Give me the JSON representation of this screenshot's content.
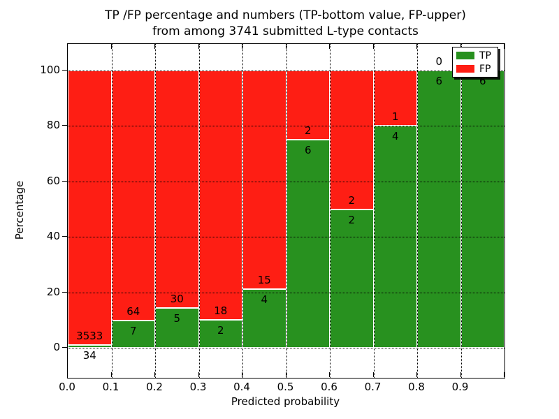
{
  "title": {
    "line1": "TP /FP percentage and numbers (TP-bottom value, FP-upper)",
    "line2": "from among 3741 submitted L-type contacts"
  },
  "axes": {
    "xlabel": "Predicted probability",
    "ylabel": "Percentage",
    "x_tick_labels": [
      "0.0",
      "0.1",
      "0.2",
      "0.3",
      "0.4",
      "0.5",
      "0.6",
      "0.7",
      "0.8",
      "0.9"
    ],
    "y_tick_labels": [
      "0",
      "20",
      "40",
      "60",
      "80",
      "100"
    ],
    "y_tick_values": [
      0,
      20,
      40,
      60,
      80,
      100
    ]
  },
  "legend": {
    "items": [
      {
        "label": "TP",
        "color": "#28911f"
      },
      {
        "label": "FP",
        "color": "#fe1e14"
      }
    ]
  },
  "colors": {
    "tp_green": "#28911f",
    "fp_red": "#fe1e14",
    "grid": "#000000",
    "background": "#ffffff"
  },
  "chart_data": {
    "type": "bar",
    "stacked": true,
    "title": "TP /FP percentage and numbers (TP-bottom value, FP-upper) from among 3741 submitted L-type contacts",
    "xlabel": "Predicted probability",
    "ylabel": "Percentage",
    "xlim": [
      0.0,
      1.0
    ],
    "ylim": [
      -11,
      110
    ],
    "grid": "dotted",
    "legend_position": "upper right",
    "bin_edges": [
      0.0,
      0.1,
      0.2,
      0.3,
      0.4,
      0.5,
      0.6,
      0.7,
      0.8,
      0.9,
      1.0
    ],
    "categories": [
      "0.0-0.1",
      "0.1-0.2",
      "0.2-0.3",
      "0.3-0.4",
      "0.4-0.5",
      "0.5-0.6",
      "0.6-0.7",
      "0.7-0.8",
      "0.8-0.9",
      "0.9-1.0"
    ],
    "series": [
      {
        "name": "TP",
        "color": "#28911f",
        "counts": [
          34,
          7,
          5,
          2,
          4,
          6,
          2,
          4,
          6,
          6
        ],
        "percent": [
          0.95,
          9.86,
          14.29,
          10.0,
          21.05,
          75.0,
          50.0,
          80.0,
          100.0,
          100.0
        ]
      },
      {
        "name": "FP",
        "color": "#fe1e14",
        "counts": [
          3533,
          64,
          30,
          18,
          15,
          2,
          2,
          1,
          0,
          0
        ],
        "percent": [
          99.05,
          90.14,
          85.71,
          90.0,
          78.95,
          25.0,
          50.0,
          20.0,
          0.0,
          0.0
        ]
      }
    ],
    "total_contacts": 3741
  }
}
